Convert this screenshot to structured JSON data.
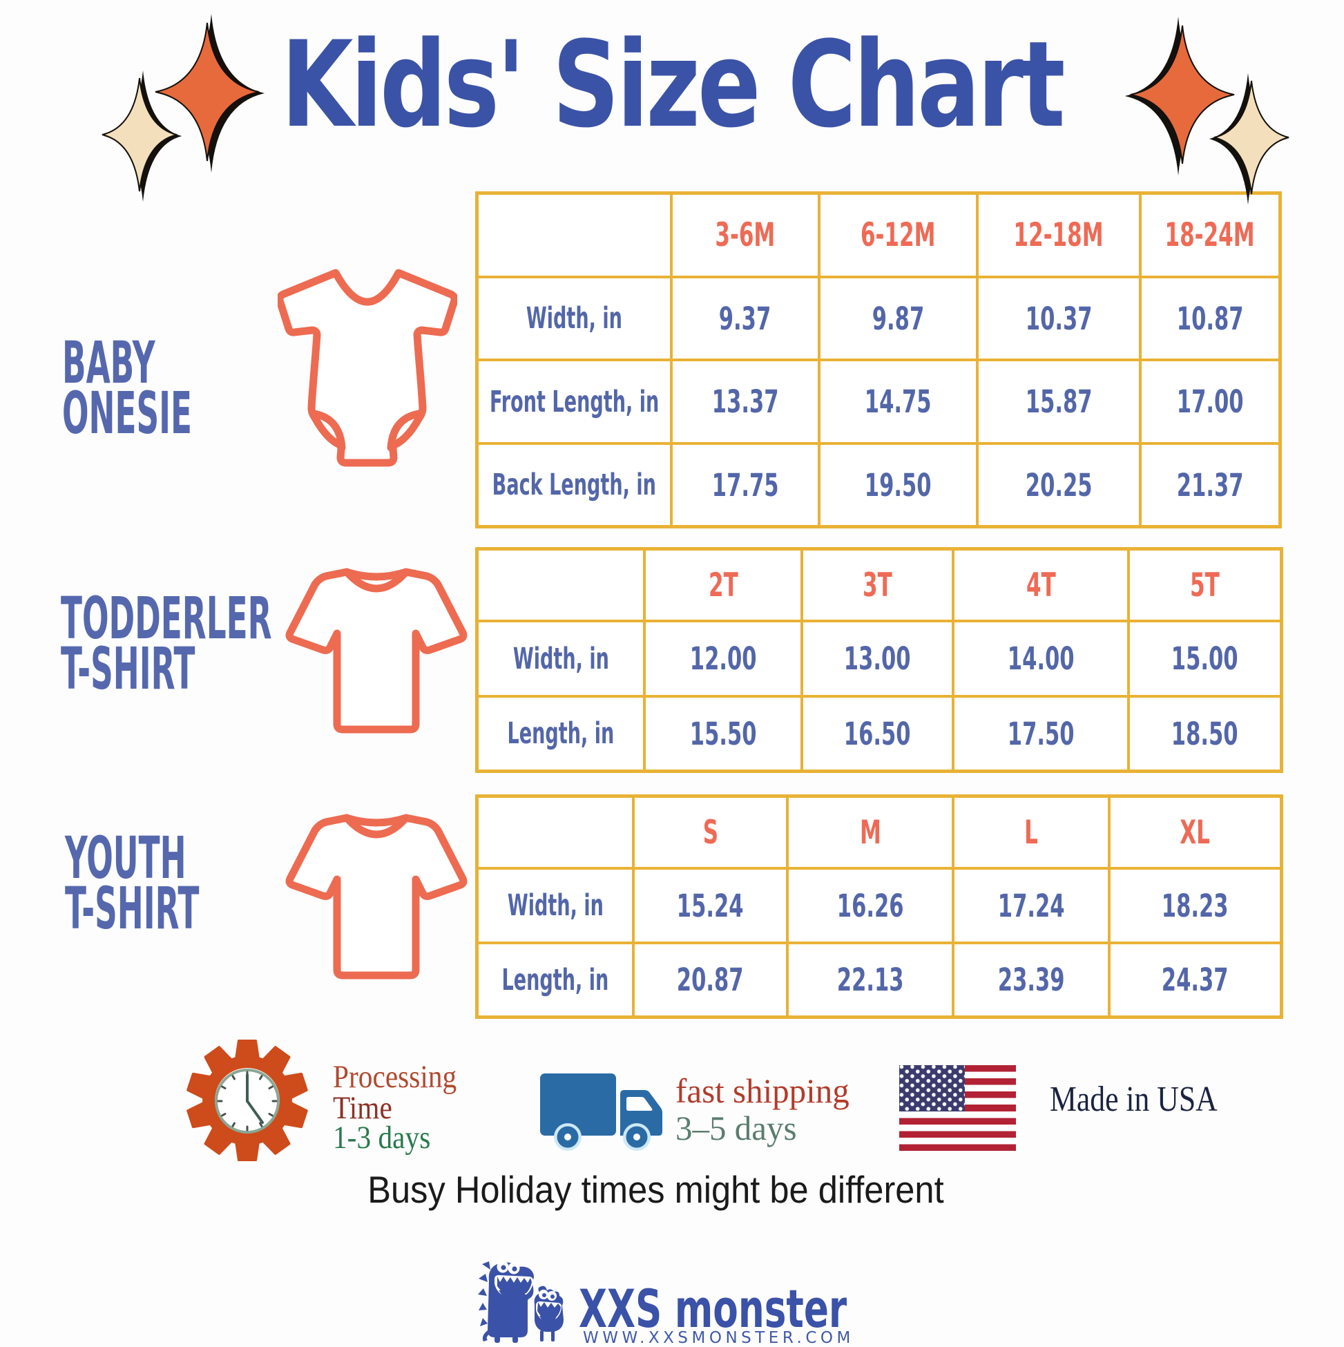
{
  "title": "Kids' Size Chart",
  "sections": [
    {
      "id": "baby-onesie",
      "label_lines": [
        "BABY",
        "ONESIE"
      ]
    },
    {
      "id": "toddler-tshirt",
      "label_lines": [
        "TODDERLER",
        "T-SHIRT"
      ]
    },
    {
      "id": "youth-tshirt",
      "label_lines": [
        "YOUTH",
        "T-SHIRT"
      ]
    }
  ],
  "chart_data": [
    {
      "type": "table",
      "title": "BABY ONESIE",
      "columns": [
        "3-6M",
        "6-12M",
        "12-18M",
        "18-24M"
      ],
      "rows": [
        {
          "label": "Width, in",
          "values": [
            "9.37",
            "9.87",
            "10.37",
            "10.87"
          ]
        },
        {
          "label": "Front Length, in",
          "values": [
            "13.37",
            "14.75",
            "15.87",
            "17.00"
          ]
        },
        {
          "label": "Back Length, in",
          "values": [
            "17.75",
            "19.50",
            "20.25",
            "21.37"
          ]
        }
      ]
    },
    {
      "type": "table",
      "title": "TODDERLER T-SHIRT",
      "columns": [
        "2T",
        "3T",
        "4T",
        "5T"
      ],
      "rows": [
        {
          "label": "Width, in",
          "values": [
            "12.00",
            "13.00",
            "14.00",
            "15.00"
          ]
        },
        {
          "label": "Length, in",
          "values": [
            "15.50",
            "16.50",
            "17.50",
            "18.50"
          ]
        }
      ]
    },
    {
      "type": "table",
      "title": "YOUTH T-SHIRT",
      "columns": [
        "S",
        "M",
        "L",
        "XL"
      ],
      "rows": [
        {
          "label": "Width, in",
          "values": [
            "15.24",
            "16.26",
            "17.24",
            "18.23"
          ]
        },
        {
          "label": "Length, in",
          "values": [
            "20.87",
            "22.13",
            "23.39",
            "24.37"
          ]
        }
      ]
    }
  ],
  "footer": {
    "processing_line1": "Processing",
    "processing_line2": "Time",
    "processing_line3": "1-3 days",
    "shipping_line1": "fast shipping",
    "shipping_line2": "3–5 days",
    "made_in": "Made in USA",
    "holiday_note": "Busy Holiday times might be different"
  },
  "brand": {
    "name": "XXS monster",
    "website": "WWW.XXSMONSTER.COM"
  },
  "colors": {
    "title_blue": "#3b53a6",
    "table_border_gold": "#e9b235",
    "header_coral": "#ef6a55",
    "value_blue": "#5366a9",
    "label_blue": "#5568ae",
    "icon_coral": "#ed6b51",
    "star_orange": "#e66a3c",
    "star_cream": "#f3dfbb",
    "gear_orange": "#ce4b1b",
    "truck_blue": "#2a6ba6",
    "flag_navy": "#3c3b6e",
    "flag_red": "#b22234",
    "brand_blue": "#3a52a7"
  }
}
